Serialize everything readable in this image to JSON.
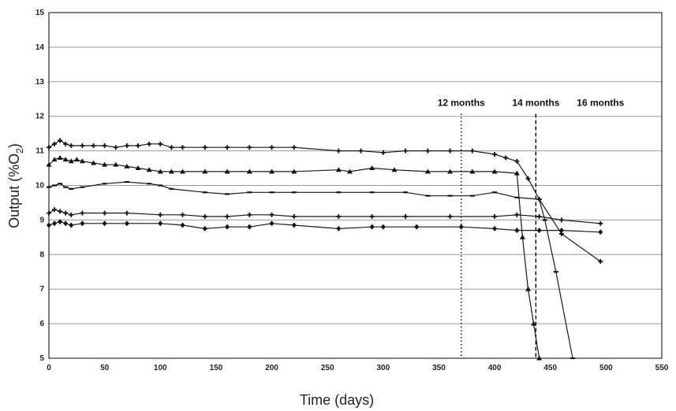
{
  "chart_data": {
    "type": "line",
    "title": "",
    "xlabel": "Time (days)",
    "ylabel": "Output (%O2)",
    "ylabel_parts": {
      "main": "Output (%O",
      "sub": "2",
      "close": ")"
    },
    "xlim": [
      0,
      550
    ],
    "ylim": [
      5,
      15
    ],
    "xticks": [
      "0",
      "50",
      "100",
      "150",
      "200",
      "250",
      "300",
      "350",
      "400",
      "450",
      "500",
      "550"
    ],
    "yticks": [
      "5",
      "6",
      "7",
      "8",
      "9",
      "10",
      "11",
      "12",
      "13",
      "14",
      "15"
    ],
    "grid": {
      "horizontal": true,
      "vertical": false
    },
    "annotations": [
      {
        "x": 370,
        "label": "12 months",
        "style": "dotted"
      },
      {
        "x": 437,
        "label": "14 months",
        "style": "dashed"
      },
      {
        "x": 495,
        "label": "16 months",
        "style": "none"
      }
    ],
    "series": [
      {
        "marker": "plus",
        "x": [
          0,
          5,
          10,
          15,
          20,
          30,
          40,
          50,
          60,
          70,
          80,
          90,
          100,
          110,
          120,
          140,
          160,
          180,
          200,
          220,
          260,
          280,
          300,
          320,
          340,
          360,
          380,
          400,
          410,
          420,
          430,
          440,
          460,
          495
        ],
        "y": [
          11.1,
          11.2,
          11.3,
          11.2,
          11.15,
          11.15,
          11.15,
          11.15,
          11.1,
          11.15,
          11.15,
          11.2,
          11.2,
          11.1,
          11.1,
          11.1,
          11.1,
          11.1,
          11.1,
          11.1,
          11.0,
          11.0,
          10.95,
          11.0,
          11.0,
          11.0,
          11.0,
          10.9,
          10.8,
          10.7,
          10.2,
          9.6,
          8.6,
          7.8
        ]
      },
      {
        "marker": "triangle",
        "x": [
          0,
          5,
          10,
          15,
          20,
          25,
          30,
          40,
          50,
          60,
          70,
          80,
          90,
          100,
          110,
          120,
          140,
          160,
          180,
          200,
          220,
          260,
          270,
          290,
          310,
          340,
          360,
          380,
          400,
          420,
          425,
          430,
          435,
          440
        ],
        "y": [
          10.6,
          10.75,
          10.8,
          10.75,
          10.7,
          10.75,
          10.7,
          10.65,
          10.6,
          10.6,
          10.55,
          10.5,
          10.45,
          10.4,
          10.4,
          10.4,
          10.4,
          10.4,
          10.4,
          10.4,
          10.4,
          10.45,
          10.4,
          10.5,
          10.45,
          10.4,
          10.4,
          10.4,
          10.4,
          10.35,
          8.5,
          7.0,
          6.0,
          5.0
        ]
      },
      {
        "marker": "dash",
        "x": [
          0,
          5,
          10,
          15,
          20,
          30,
          50,
          70,
          90,
          100,
          110,
          140,
          160,
          180,
          200,
          220,
          260,
          290,
          320,
          340,
          360,
          380,
          400,
          420,
          440,
          445,
          455,
          470
        ],
        "y": [
          9.95,
          10.0,
          10.05,
          9.95,
          9.9,
          9.95,
          10.05,
          10.1,
          10.05,
          10.0,
          9.9,
          9.8,
          9.75,
          9.8,
          9.8,
          9.8,
          9.8,
          9.8,
          9.8,
          9.7,
          9.7,
          9.7,
          9.8,
          9.65,
          9.6,
          9.0,
          7.5,
          5.0
        ]
      },
      {
        "marker": "plus",
        "x": [
          0,
          5,
          10,
          15,
          20,
          30,
          50,
          70,
          100,
          120,
          140,
          160,
          180,
          200,
          220,
          260,
          290,
          320,
          360,
          400,
          420,
          440,
          460,
          495
        ],
        "y": [
          9.2,
          9.3,
          9.25,
          9.2,
          9.15,
          9.2,
          9.2,
          9.2,
          9.15,
          9.15,
          9.1,
          9.1,
          9.15,
          9.15,
          9.1,
          9.1,
          9.1,
          9.1,
          9.1,
          9.1,
          9.15,
          9.1,
          9.0,
          8.9
        ]
      },
      {
        "marker": "diamond",
        "x": [
          0,
          5,
          10,
          15,
          20,
          30,
          50,
          70,
          100,
          120,
          140,
          160,
          180,
          200,
          220,
          260,
          290,
          300,
          330,
          370,
          400,
          420,
          440,
          460,
          495
        ],
        "y": [
          8.85,
          8.9,
          8.95,
          8.9,
          8.85,
          8.9,
          8.9,
          8.9,
          8.9,
          8.85,
          8.75,
          8.8,
          8.8,
          8.9,
          8.85,
          8.75,
          8.8,
          8.8,
          8.8,
          8.8,
          8.75,
          8.7,
          8.7,
          8.7,
          8.65
        ]
      }
    ]
  }
}
